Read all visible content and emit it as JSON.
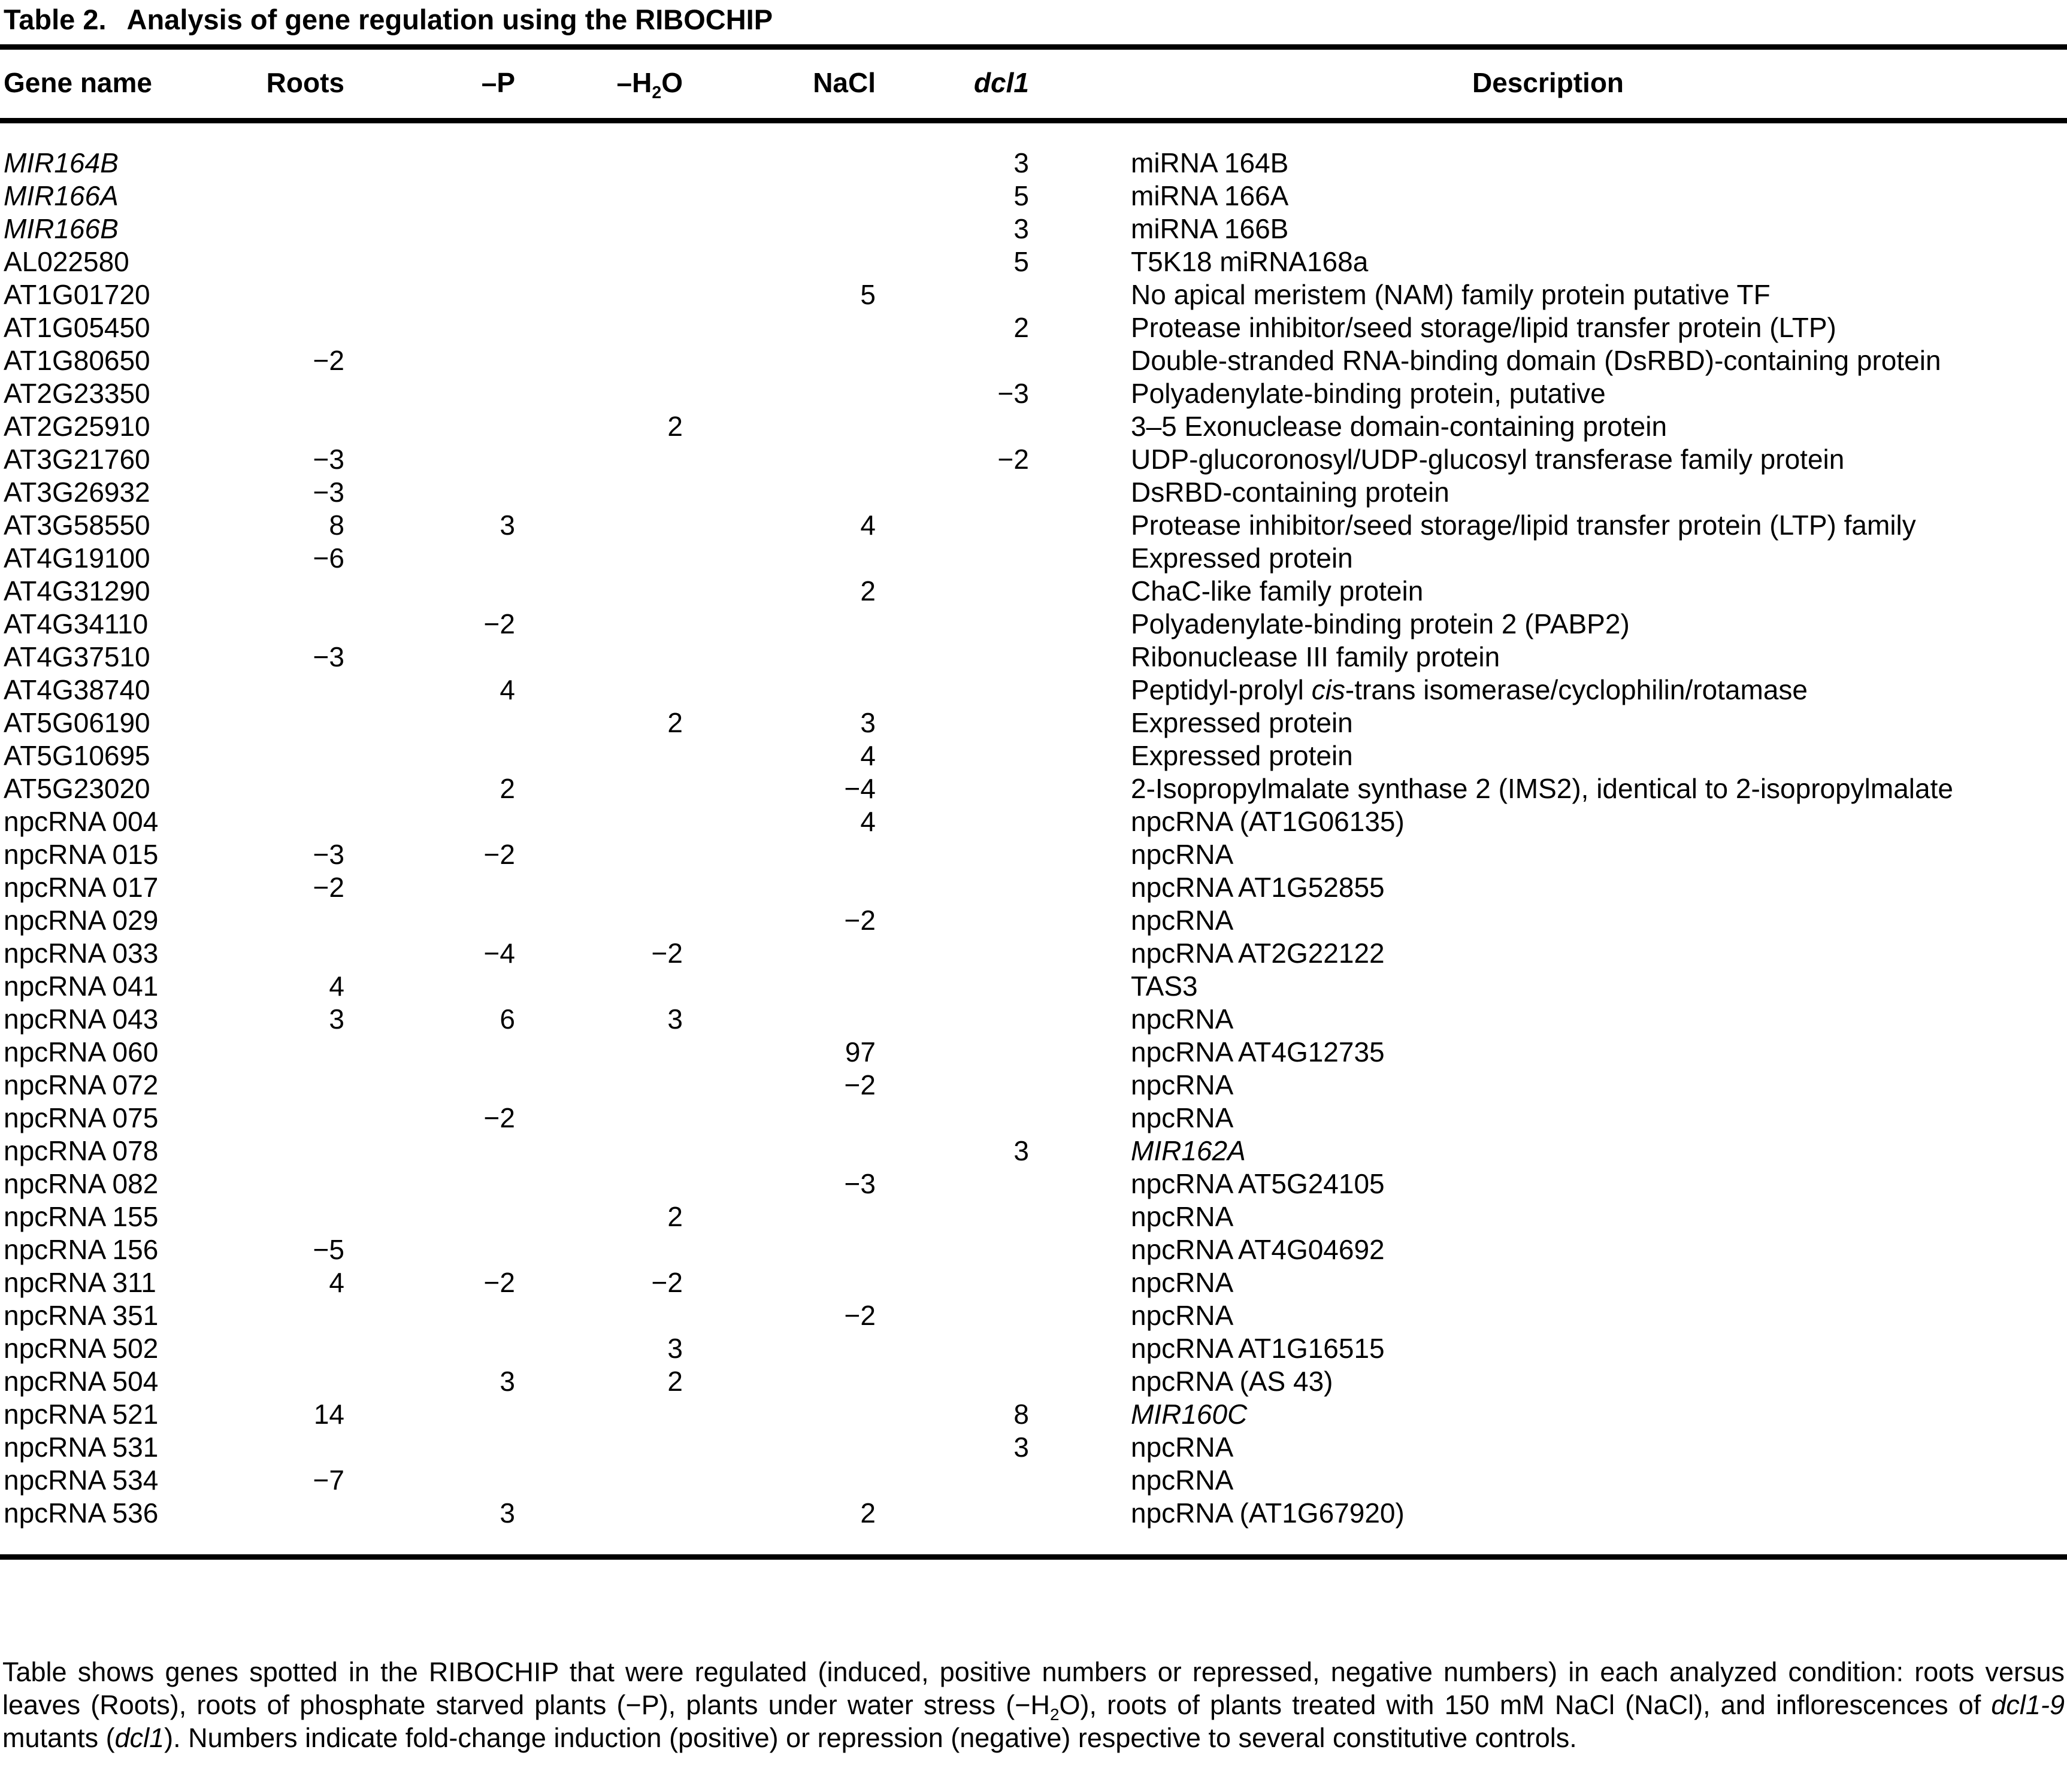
{
  "page": {
    "title": {
      "label": "Table 2.",
      "text": "Analysis of gene regulation using the RIBOCHIP"
    }
  },
  "table": {
    "columns": [
      {
        "key": "gene",
        "align": "left",
        "rich": [
          {
            "text": "Gene name"
          }
        ]
      },
      {
        "key": "roots",
        "align": "right",
        "rich": [
          {
            "text": "Roots"
          }
        ]
      },
      {
        "key": "p",
        "align": "right",
        "rich": [
          {
            "text": "–P"
          }
        ]
      },
      {
        "key": "h2o",
        "align": "right",
        "rich": [
          {
            "text": "–H"
          },
          {
            "text": "2",
            "sub": true
          },
          {
            "text": "O"
          }
        ]
      },
      {
        "key": "nacl",
        "align": "right",
        "rich": [
          {
            "text": "NaCl"
          }
        ]
      },
      {
        "key": "dcl1",
        "align": "right",
        "rich": [
          {
            "text": "dcl1",
            "italic": true
          }
        ]
      },
      {
        "key": "desc",
        "align": "center",
        "rich": [
          {
            "text": "Description"
          }
        ]
      }
    ],
    "rows": [
      {
        "gene": "MIR164B",
        "gene_italic": true,
        "roots": "",
        "p": "",
        "h2o": "",
        "nacl": "",
        "dcl1": "3",
        "desc": [
          {
            "text": "miRNA 164B"
          }
        ]
      },
      {
        "gene": "MIR166A",
        "gene_italic": true,
        "roots": "",
        "p": "",
        "h2o": "",
        "nacl": "",
        "dcl1": "5",
        "desc": [
          {
            "text": "miRNA 166A"
          }
        ]
      },
      {
        "gene": "MIR166B",
        "gene_italic": true,
        "roots": "",
        "p": "",
        "h2o": "",
        "nacl": "",
        "dcl1": "3",
        "desc": [
          {
            "text": "miRNA 166B"
          }
        ]
      },
      {
        "gene": "AL022580",
        "gene_italic": false,
        "roots": "",
        "p": "",
        "h2o": "",
        "nacl": "",
        "dcl1": "5",
        "desc": [
          {
            "text": "T5K18 miRNA168a"
          }
        ]
      },
      {
        "gene": "AT1G01720",
        "gene_italic": false,
        "roots": "",
        "p": "",
        "h2o": "",
        "nacl": "5",
        "dcl1": "",
        "desc": [
          {
            "text": "No apical meristem (NAM) family protein putative TF"
          }
        ]
      },
      {
        "gene": "AT1G05450",
        "gene_italic": false,
        "roots": "",
        "p": "",
        "h2o": "",
        "nacl": "",
        "dcl1": "2",
        "desc": [
          {
            "text": "Protease inhibitor/seed storage/lipid transfer protein (LTP)"
          }
        ]
      },
      {
        "gene": "AT1G80650",
        "gene_italic": false,
        "roots": "−2",
        "p": "",
        "h2o": "",
        "nacl": "",
        "dcl1": "",
        "desc": [
          {
            "text": "Double-stranded RNA-binding domain (DsRBD)-containing protein"
          }
        ]
      },
      {
        "gene": "AT2G23350",
        "gene_italic": false,
        "roots": "",
        "p": "",
        "h2o": "",
        "nacl": "",
        "dcl1": "−3",
        "desc": [
          {
            "text": "Polyadenylate-binding protein, putative"
          }
        ]
      },
      {
        "gene": "AT2G25910",
        "gene_italic": false,
        "roots": "",
        "p": "",
        "h2o": "2",
        "nacl": "",
        "dcl1": "",
        "desc": [
          {
            "text": "3–5 Exonuclease domain-containing protein"
          }
        ]
      },
      {
        "gene": "AT3G21760",
        "gene_italic": false,
        "roots": "−3",
        "p": "",
        "h2o": "",
        "nacl": "",
        "dcl1": "−2",
        "desc": [
          {
            "text": "UDP-glucoronosyl/UDP-glucosyl transferase family protein"
          }
        ]
      },
      {
        "gene": "AT3G26932",
        "gene_italic": false,
        "roots": "−3",
        "p": "",
        "h2o": "",
        "nacl": "",
        "dcl1": "",
        "desc": [
          {
            "text": "DsRBD-containing protein"
          }
        ]
      },
      {
        "gene": "AT3G58550",
        "gene_italic": false,
        "roots": "8",
        "p": "3",
        "h2o": "",
        "nacl": "4",
        "dcl1": "",
        "desc": [
          {
            "text": "Protease inhibitor/seed storage/lipid transfer protein (LTP) family"
          }
        ]
      },
      {
        "gene": "AT4G19100",
        "gene_italic": false,
        "roots": "−6",
        "p": "",
        "h2o": "",
        "nacl": "",
        "dcl1": "",
        "desc": [
          {
            "text": "Expressed protein"
          }
        ]
      },
      {
        "gene": "AT4G31290",
        "gene_italic": false,
        "roots": "",
        "p": "",
        "h2o": "",
        "nacl": "2",
        "dcl1": "",
        "desc": [
          {
            "text": "ChaC-like family protein"
          }
        ]
      },
      {
        "gene": "AT4G34110",
        "gene_italic": false,
        "roots": "",
        "p": "−2",
        "h2o": "",
        "nacl": "",
        "dcl1": "",
        "desc": [
          {
            "text": "Polyadenylate-binding protein 2 (PABP2)"
          }
        ]
      },
      {
        "gene": "AT4G37510",
        "gene_italic": false,
        "roots": "−3",
        "p": "",
        "h2o": "",
        "nacl": "",
        "dcl1": "",
        "desc": [
          {
            "text": "Ribonuclease III family protein"
          }
        ]
      },
      {
        "gene": "AT4G38740",
        "gene_italic": false,
        "roots": "",
        "p": "4",
        "h2o": "",
        "nacl": "",
        "dcl1": "",
        "desc": [
          {
            "text": "Peptidyl-prolyl "
          },
          {
            "text": "cis",
            "italic": true
          },
          {
            "text": "-trans isomerase/cyclophilin/rotamase"
          }
        ]
      },
      {
        "gene": "AT5G06190",
        "gene_italic": false,
        "roots": "",
        "p": "",
        "h2o": "2",
        "nacl": "3",
        "dcl1": "",
        "desc": [
          {
            "text": "Expressed protein"
          }
        ]
      },
      {
        "gene": "AT5G10695",
        "gene_italic": false,
        "roots": "",
        "p": "",
        "h2o": "",
        "nacl": "4",
        "dcl1": "",
        "desc": [
          {
            "text": "Expressed protein"
          }
        ]
      },
      {
        "gene": "AT5G23020",
        "gene_italic": false,
        "roots": "",
        "p": "2",
        "h2o": "",
        "nacl": "−4",
        "dcl1": "",
        "desc": [
          {
            "text": "2-Isopropylmalate synthase 2 (IMS2), identical to 2-isopropylmalate"
          }
        ]
      },
      {
        "gene": "npcRNA 004",
        "gene_italic": false,
        "roots": "",
        "p": "",
        "h2o": "",
        "nacl": "4",
        "dcl1": "",
        "desc": [
          {
            "text": "npcRNA (AT1G06135)"
          }
        ]
      },
      {
        "gene": "npcRNA 015",
        "gene_italic": false,
        "roots": "−3",
        "p": "−2",
        "h2o": "",
        "nacl": "",
        "dcl1": "",
        "desc": [
          {
            "text": "npcRNA"
          }
        ]
      },
      {
        "gene": "npcRNA 017",
        "gene_italic": false,
        "roots": "−2",
        "p": "",
        "h2o": "",
        "nacl": "",
        "dcl1": "",
        "desc": [
          {
            "text": "npcRNA AT1G52855"
          }
        ]
      },
      {
        "gene": "npcRNA 029",
        "gene_italic": false,
        "roots": "",
        "p": "",
        "h2o": "",
        "nacl": "−2",
        "dcl1": "",
        "desc": [
          {
            "text": "npcRNA"
          }
        ]
      },
      {
        "gene": "npcRNA 033",
        "gene_italic": false,
        "roots": "",
        "p": "−4",
        "h2o": "−2",
        "nacl": "",
        "dcl1": "",
        "desc": [
          {
            "text": "npcRNA AT2G22122"
          }
        ]
      },
      {
        "gene": "npcRNA 041",
        "gene_italic": false,
        "roots": "4",
        "p": "",
        "h2o": "",
        "nacl": "",
        "dcl1": "",
        "desc": [
          {
            "text": "TAS3"
          }
        ]
      },
      {
        "gene": "npcRNA 043",
        "gene_italic": false,
        "roots": "3",
        "p": "6",
        "h2o": "3",
        "nacl": "",
        "dcl1": "",
        "desc": [
          {
            "text": "npcRNA"
          }
        ]
      },
      {
        "gene": "npcRNA 060",
        "gene_italic": false,
        "roots": "",
        "p": "",
        "h2o": "",
        "nacl": "97",
        "dcl1": "",
        "desc": [
          {
            "text": "npcRNA AT4G12735"
          }
        ]
      },
      {
        "gene": "npcRNA 072",
        "gene_italic": false,
        "roots": "",
        "p": "",
        "h2o": "",
        "nacl": "−2",
        "dcl1": "",
        "desc": [
          {
            "text": "npcRNA"
          }
        ]
      },
      {
        "gene": "npcRNA 075",
        "gene_italic": false,
        "roots": "",
        "p": "−2",
        "h2o": "",
        "nacl": "",
        "dcl1": "",
        "desc": [
          {
            "text": "npcRNA"
          }
        ]
      },
      {
        "gene": "npcRNA 078",
        "gene_italic": false,
        "roots": "",
        "p": "",
        "h2o": "",
        "nacl": "",
        "dcl1": "3",
        "desc": [
          {
            "text": "MIR162A",
            "italic": true
          }
        ]
      },
      {
        "gene": "npcRNA 082",
        "gene_italic": false,
        "roots": "",
        "p": "",
        "h2o": "",
        "nacl": "−3",
        "dcl1": "",
        "desc": [
          {
            "text": "npcRNA AT5G24105"
          }
        ]
      },
      {
        "gene": "npcRNA 155",
        "gene_italic": false,
        "roots": "",
        "p": "",
        "h2o": "2",
        "nacl": "",
        "dcl1": "",
        "desc": [
          {
            "text": "npcRNA"
          }
        ]
      },
      {
        "gene": "npcRNA 156",
        "gene_italic": false,
        "roots": "−5",
        "p": "",
        "h2o": "",
        "nacl": "",
        "dcl1": "",
        "desc": [
          {
            "text": "npcRNA AT4G04692"
          }
        ]
      },
      {
        "gene": "npcRNA 311",
        "gene_italic": false,
        "roots": "4",
        "p": "−2",
        "h2o": "−2",
        "nacl": "",
        "dcl1": "",
        "desc": [
          {
            "text": "npcRNA"
          }
        ]
      },
      {
        "gene": "npcRNA 351",
        "gene_italic": false,
        "roots": "",
        "p": "",
        "h2o": "",
        "nacl": "−2",
        "dcl1": "",
        "desc": [
          {
            "text": "npcRNA"
          }
        ]
      },
      {
        "gene": "npcRNA 502",
        "gene_italic": false,
        "roots": "",
        "p": "",
        "h2o": "3",
        "nacl": "",
        "dcl1": "",
        "desc": [
          {
            "text": "npcRNA AT1G16515"
          }
        ]
      },
      {
        "gene": "npcRNA 504",
        "gene_italic": false,
        "roots": "",
        "p": "3",
        "h2o": "2",
        "nacl": "",
        "dcl1": "",
        "desc": [
          {
            "text": "npcRNA (AS 43)"
          }
        ]
      },
      {
        "gene": "npcRNA 521",
        "gene_italic": false,
        "roots": "14",
        "p": "",
        "h2o": "",
        "nacl": "",
        "dcl1": "8",
        "desc": [
          {
            "text": "MIR160C",
            "italic": true
          }
        ]
      },
      {
        "gene": "npcRNA 531",
        "gene_italic": false,
        "roots": "",
        "p": "",
        "h2o": "",
        "nacl": "",
        "dcl1": "3",
        "desc": [
          {
            "text": "npcRNA"
          }
        ]
      },
      {
        "gene": "npcRNA 534",
        "gene_italic": false,
        "roots": "−7",
        "p": "",
        "h2o": "",
        "nacl": "",
        "dcl1": "",
        "desc": [
          {
            "text": "npcRNA"
          }
        ]
      },
      {
        "gene": "npcRNA 536",
        "gene_italic": false,
        "roots": "",
        "p": "3",
        "h2o": "",
        "nacl": "2",
        "dcl1": "",
        "desc": [
          {
            "text": "npcRNA (AT1G67920)"
          }
        ]
      }
    ]
  },
  "footnote": {
    "segments": [
      {
        "text": "Table shows genes spotted in the RIBOCHIP that were regulated (induced, positive numbers or repressed, negative numbers) in each analyzed condition: roots versus leaves (Roots), roots of phosphate starved plants (−P), plants under water stress (−H"
      },
      {
        "text": "2",
        "sub": true
      },
      {
        "text": "O), roots of plants treated with 150 mM NaCl (NaCl), and inflorescences of "
      },
      {
        "text": "dcl1-9",
        "italic": true
      },
      {
        "text": " mutants ("
      },
      {
        "text": "dcl1",
        "italic": true
      },
      {
        "text": "). Numbers indicate fold-change induction (positive) or repression (negative) respective to several constitutive controls."
      }
    ]
  }
}
